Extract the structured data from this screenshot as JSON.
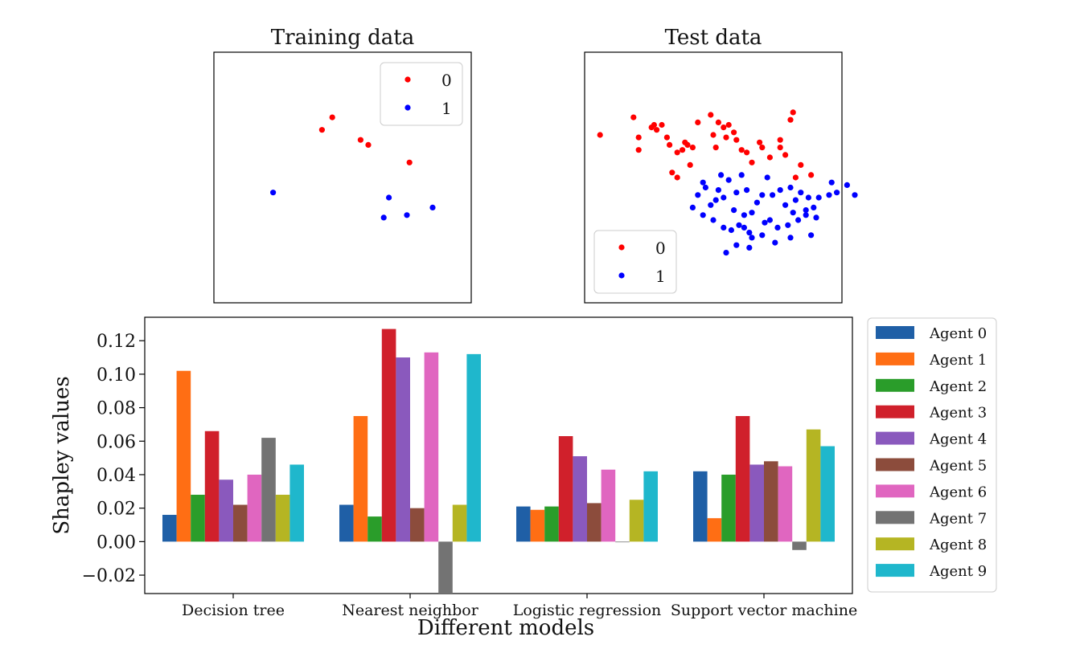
{
  "colors": {
    "class0": "#ff0000",
    "class1": "#0000ff",
    "agents": [
      "#1f5fa6",
      "#ff6e14",
      "#2a9d2a",
      "#d0202b",
      "#8a59bd",
      "#8c4c3c",
      "#e066c0",
      "#737373",
      "#b5b523",
      "#1fb7cc"
    ]
  },
  "chart_data": [
    {
      "type": "scatter",
      "title": "Training data",
      "legend": [
        "0",
        "1"
      ],
      "legend_position": "top-right",
      "xlim": [
        0,
        10
      ],
      "ylim": [
        0,
        10
      ],
      "series": [
        {
          "name": "0",
          "points": [
            [
              4.6,
              7.4
            ],
            [
              4.2,
              6.9
            ],
            [
              5.7,
              6.5
            ],
            [
              6.0,
              6.3
            ],
            [
              7.6,
              5.6
            ]
          ]
        },
        {
          "name": "1",
          "points": [
            [
              2.3,
              4.4
            ],
            [
              6.8,
              4.2
            ],
            [
              6.6,
              3.4
            ],
            [
              7.5,
              3.5
            ],
            [
              8.5,
              3.8
            ]
          ]
        }
      ]
    },
    {
      "type": "scatter",
      "title": "Test data",
      "legend": [
        "0",
        "1"
      ],
      "legend_position": "bottom-left",
      "xlim": [
        0,
        10
      ],
      "ylim": [
        0,
        10
      ],
      "series": [
        {
          "name": "0",
          "points": [
            [
              0.6,
              6.7
            ],
            [
              1.9,
              7.4
            ],
            [
              2.6,
              7.0
            ],
            [
              2.7,
              7.1
            ],
            [
              2.8,
              6.9
            ],
            [
              3.0,
              7.1
            ],
            [
              2.1,
              6.6
            ],
            [
              2.1,
              6.1
            ],
            [
              3.2,
              6.6
            ],
            [
              3.3,
              6.3
            ],
            [
              3.6,
              6.0
            ],
            [
              3.8,
              6.1
            ],
            [
              3.9,
              6.4
            ],
            [
              4.0,
              6.3
            ],
            [
              4.2,
              6.2
            ],
            [
              4.4,
              7.2
            ],
            [
              4.9,
              7.5
            ],
            [
              5.0,
              6.7
            ],
            [
              5.2,
              7.2
            ],
            [
              5.1,
              6.2
            ],
            [
              5.4,
              7.0
            ],
            [
              5.6,
              7.1
            ],
            [
              5.5,
              6.6
            ],
            [
              5.8,
              6.8
            ],
            [
              5.9,
              6.5
            ],
            [
              6.1,
              6.1
            ],
            [
              6.3,
              6.0
            ],
            [
              6.5,
              5.6
            ],
            [
              6.8,
              6.4
            ],
            [
              6.9,
              6.2
            ],
            [
              7.2,
              5.8
            ],
            [
              7.6,
              6.5
            ],
            [
              7.6,
              6.2
            ],
            [
              8.0,
              7.3
            ],
            [
              8.1,
              7.6
            ],
            [
              8.4,
              5.5
            ],
            [
              7.8,
              5.9
            ],
            [
              3.4,
              5.2
            ],
            [
              3.6,
              5.0
            ],
            [
              4.1,
              5.5
            ],
            [
              8.8,
              5.1
            ],
            [
              8.2,
              5.0
            ]
          ]
        },
        {
          "name": "1",
          "points": [
            [
              4.4,
              4.3
            ],
            [
              4.7,
              4.6
            ],
            [
              4.9,
              3.9
            ],
            [
              5.1,
              4.1
            ],
            [
              5.3,
              5.1
            ],
            [
              5.4,
              4.2
            ],
            [
              5.6,
              4.9
            ],
            [
              5.8,
              3.7
            ],
            [
              5.9,
              4.4
            ],
            [
              6.1,
              5.1
            ],
            [
              6.3,
              4.5
            ],
            [
              6.5,
              3.6
            ],
            [
              6.7,
              4.0
            ],
            [
              6.9,
              4.3
            ],
            [
              7.1,
              5.0
            ],
            [
              7.3,
              4.3
            ],
            [
              7.6,
              4.5
            ],
            [
              7.8,
              3.9
            ],
            [
              8.0,
              4.6
            ],
            [
              8.2,
              4.1
            ],
            [
              8.4,
              4.4
            ],
            [
              8.6,
              3.7
            ],
            [
              8.7,
              4.2
            ],
            [
              8.9,
              3.8
            ],
            [
              9.1,
              4.2
            ],
            [
              4.6,
              3.5
            ],
            [
              5.0,
              3.3
            ],
            [
              5.4,
              3.0
            ],
            [
              5.7,
              2.9
            ],
            [
              6.0,
              3.1
            ],
            [
              6.2,
              3.0
            ],
            [
              6.5,
              2.6
            ],
            [
              6.9,
              2.7
            ],
            [
              7.2,
              3.3
            ],
            [
              7.5,
              3.0
            ],
            [
              7.9,
              3.1
            ],
            [
              8.3,
              3.3
            ],
            [
              8.6,
              3.5
            ],
            [
              9.0,
              3.4
            ],
            [
              5.9,
              2.3
            ],
            [
              6.4,
              2.2
            ],
            [
              7.4,
              2.4
            ],
            [
              8.0,
              2.6
            ],
            [
              8.8,
              2.7
            ],
            [
              5.5,
              2.0
            ],
            [
              4.2,
              3.8
            ],
            [
              4.6,
              4.8
            ],
            [
              5.2,
              4.5
            ],
            [
              6.2,
              3.5
            ],
            [
              7.0,
              3.2
            ],
            [
              8.1,
              3.6
            ],
            [
              6.4,
              2.8
            ],
            [
              9.6,
              4.8
            ],
            [
              9.8,
              4.4
            ],
            [
              10.2,
              4.7
            ],
            [
              10.5,
              4.3
            ],
            [
              9.5,
              4.3
            ]
          ]
        }
      ]
    },
    {
      "type": "bar",
      "categories": [
        "Decision tree",
        "Nearest neighbor",
        "Logistic regression",
        "Support vector machine"
      ],
      "xlabel": "Different models",
      "ylabel": "Shapley values",
      "ylim": [
        -0.031,
        0.134
      ],
      "yticks": [
        -0.02,
        0.0,
        0.02,
        0.04,
        0.06,
        0.08,
        0.1,
        0.12
      ],
      "ytick_labels": [
        "−0.02",
        "0.00",
        "0.02",
        "0.04",
        "0.06",
        "0.08",
        "0.10",
        "0.12"
      ],
      "legend_position": "outside-right",
      "series": [
        {
          "name": "Agent 0",
          "values": [
            0.016,
            0.022,
            0.021,
            0.042
          ]
        },
        {
          "name": "Agent 1",
          "values": [
            0.102,
            0.075,
            0.019,
            0.014
          ]
        },
        {
          "name": "Agent 2",
          "values": [
            0.028,
            0.015,
            0.021,
            0.04
          ]
        },
        {
          "name": "Agent 3",
          "values": [
            0.066,
            0.127,
            0.063,
            0.075
          ]
        },
        {
          "name": "Agent 4",
          "values": [
            0.037,
            0.11,
            0.051,
            0.046
          ]
        },
        {
          "name": "Agent 5",
          "values": [
            0.022,
            0.02,
            0.023,
            0.048
          ]
        },
        {
          "name": "Agent 6",
          "values": [
            0.04,
            0.113,
            0.043,
            0.045
          ]
        },
        {
          "name": "Agent 7",
          "values": [
            0.062,
            -0.031,
            0.0,
            -0.005
          ]
        },
        {
          "name": "Agent 8",
          "values": [
            0.028,
            0.022,
            0.025,
            0.067
          ]
        },
        {
          "name": "Agent 9",
          "values": [
            0.046,
            0.112,
            0.042,
            0.057
          ]
        }
      ]
    }
  ]
}
